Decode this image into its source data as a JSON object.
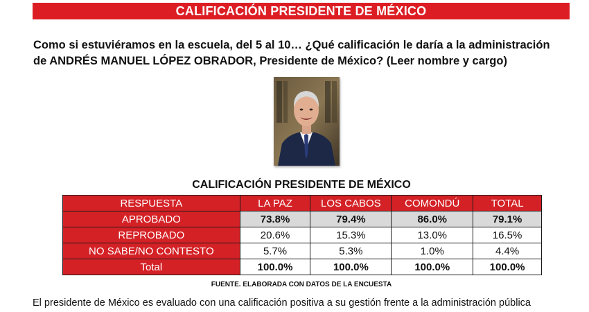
{
  "banner": {
    "title": "CALIFICACIÓN PRESIDENTE DE MÉXICO"
  },
  "question": {
    "line1": "Como si estuviéramos en la escuela, del 5 al 10… ¿Qué calificación le daría a la administración",
    "line2": "de ANDRÉS MANUEL LÓPEZ OBRADOR, Presidente de México? (Leer nombre y cargo)"
  },
  "colors": {
    "accent_red": "#d42126",
    "banner_red": "#dc1e24",
    "highlight_gray": "#d9d9d9"
  },
  "chart_data": {
    "type": "table",
    "title": "CALIFICACIÓN PRESIDENTE DE MÉXICO",
    "header_label": "RESPUESTA",
    "columns": [
      "LA PAZ",
      "LOS CABOS",
      "COMONDÚ",
      "TOTAL"
    ],
    "rows": [
      {
        "label": "APROBADO",
        "values": [
          "73.8%",
          "79.4%",
          "86.0%",
          "79.1%"
        ]
      },
      {
        "label": "REPROBADO",
        "values": [
          "20.6%",
          "15.3%",
          "13.0%",
          "16.5%"
        ]
      },
      {
        "label": "NO SABE/NO CONTESTO",
        "values": [
          "5.7%",
          "5.3%",
          "1.0%",
          "4.4%"
        ]
      },
      {
        "label": "Total",
        "values": [
          "100.0%",
          "100.0%",
          "100.0%",
          "100.0%"
        ]
      }
    ],
    "source": "FUENTE. ELABORADA CON DATOS DE LA ENCUESTA"
  },
  "caption": "El presidente de México es evaluado con una calificación positiva a su gestión frente a la administración pública"
}
